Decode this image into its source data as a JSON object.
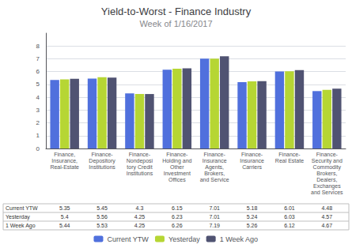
{
  "chart_data": {
    "type": "bar",
    "title": "Yield-to-Worst - Finance Industry",
    "subtitle": "Week of 1/16/2017",
    "categories": [
      "Finance,\nInsurance,\nReal-Estate",
      "Finance-\nDepository\nInstitutions",
      "Finance-\nNondeposi\ntory Credit\nInstitutions",
      "Finance-\nHolding and\nOther\nInvestment\nOffices",
      "Finance-\nInsurance\nAgents,\nBrokers,\nand Service",
      "Finance-\nInsurance\nCarriers",
      "Finance-\nReal Estate",
      "Finance-\nSecurity and\nCommodity\nBrokers,\nDealers,\nExchanges\nand Services"
    ],
    "series": [
      {
        "name": "Current YTW",
        "values": [
          5.35,
          5.45,
          4.3,
          6.15,
          7.01,
          5.18,
          6.01,
          4.48
        ]
      },
      {
        "name": "Yesterday",
        "values": [
          5.4,
          5.56,
          4.25,
          6.23,
          7.01,
          5.24,
          6.03,
          4.57
        ]
      },
      {
        "name": "1 Week Ago",
        "values": [
          5.44,
          5.53,
          4.25,
          6.26,
          7.19,
          5.26,
          6.12,
          4.67
        ]
      }
    ],
    "ylim": [
      0,
      9
    ],
    "yticks": [
      0,
      1,
      2,
      3,
      4,
      5,
      6,
      7,
      8
    ],
    "grid": true,
    "legend": "bottom"
  }
}
